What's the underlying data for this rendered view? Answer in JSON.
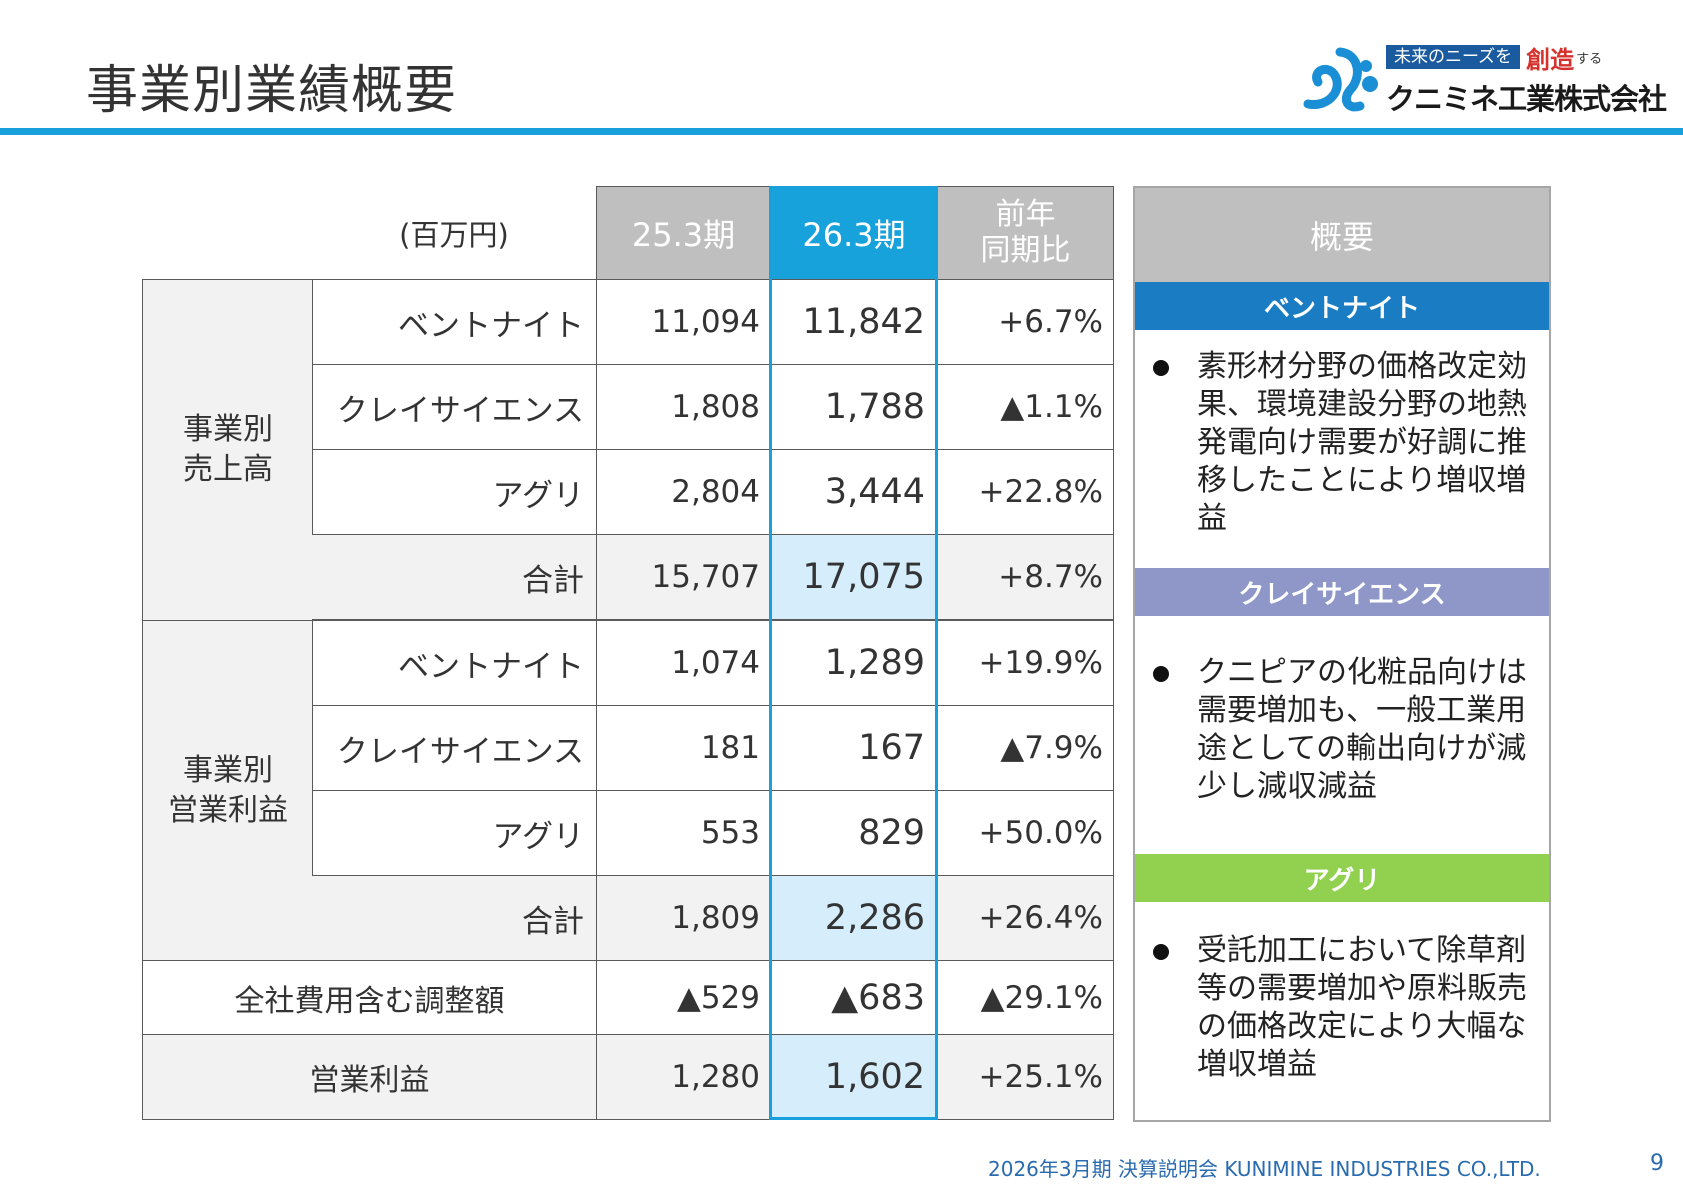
{
  "title": "事業別業績概要",
  "logo": {
    "tagline_box": "未来のニーズを",
    "tagline_red": "創造",
    "tagline_small": "する",
    "company": "クニミネ工業株式会社"
  },
  "table": {
    "unit": "(百万円)",
    "col_prev": "25.3期",
    "col_curr": "26.3期",
    "col_yoy": "前年\n同期比",
    "group_sales": "事業別\n売上高",
    "group_profit": "事業別\n営業利益",
    "sales": [
      {
        "label": "ベントナイト",
        "prev": "11,094",
        "curr": "11,842",
        "yoy": "+6.7%"
      },
      {
        "label": "クレイサイエンス",
        "prev": "1,808",
        "curr": "1,788",
        "yoy": "▲1.1%"
      },
      {
        "label": "アグリ",
        "prev": "2,804",
        "curr": "3,444",
        "yoy": "+22.8%"
      },
      {
        "label": "合計",
        "prev": "15,707",
        "curr": "17,075",
        "yoy": "+8.7%"
      }
    ],
    "profit": [
      {
        "label": "ベントナイト",
        "prev": "1,074",
        "curr": "1,289",
        "yoy": "+19.9%"
      },
      {
        "label": "クレイサイエンス",
        "prev": "181",
        "curr": "167",
        "yoy": "▲7.9%"
      },
      {
        "label": "アグリ",
        "prev": "553",
        "curr": "829",
        "yoy": "+50.0%"
      },
      {
        "label": "合計",
        "prev": "1,809",
        "curr": "2,286",
        "yoy": "+26.4%"
      }
    ],
    "adjust": {
      "label": "全社費用含む調整額",
      "prev": "▲529",
      "curr": "▲683",
      "yoy": "▲29.1%"
    },
    "operating": {
      "label": "営業利益",
      "prev": "1,280",
      "curr": "1,602",
      "yoy": "+25.1%"
    }
  },
  "summary": {
    "header": "概要",
    "sections": [
      {
        "title": "ベントナイト",
        "color": "#1a7dc4",
        "text": "素形材分野の価格改定効果、環境建設分野の地熱発電向け需要が好調に推移したことにより増収増益"
      },
      {
        "title": "クレイサイエンス",
        "color": "#8e97c8",
        "text": "クニピアの化粧品向けは需要増加も、一般工業用途としての輸出向けが減少し減収減益"
      },
      {
        "title": "アグリ",
        "color": "#92d050",
        "text": "受託加工において除草剤等の需要増加や原料販売の価格改定により大幅な増収増益"
      }
    ]
  },
  "footer": "2026年3月期 決算説明会 KUNIMINE INDUSTRIES CO.,LTD.",
  "page_number": "9"
}
